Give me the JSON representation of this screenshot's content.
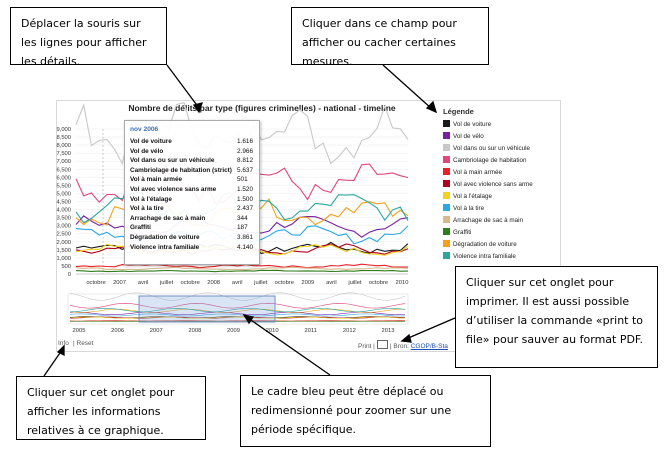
{
  "callouts": {
    "mouse": "Déplacer la souris sur les lignes pour afficher les détails.",
    "field": "Cliquer dans ce champ pour afficher ou cacher certaines mesures.",
    "print": "Cliquer sur cet onglet pour imprimer. Il est aussi possible d’utiliser la commande «print to file» pour sauver au format PDF.",
    "info": "Cliquer sur cet onglet pour afficher les informations relatives à ce graphique.",
    "frame": "Le cadre bleu peut être déplacé ou redimensionné pour zoomer sur une période spécifique."
  },
  "chart": {
    "title": "Nombre de délits par type (figures criminelles) - national - timeline",
    "legend_title": "Légende",
    "y_ticks": [
      "9,000",
      "8,500",
      "8,000",
      "7,500",
      "7,000",
      "6,500",
      "6,000",
      "5,500",
      "5,000",
      "4,500",
      "4,000",
      "3,500",
      "3,000",
      "2,500",
      "2,000",
      "1,500",
      "1,000",
      "500",
      "0"
    ],
    "x_ticks": [
      "octobre",
      "2007",
      "avril",
      "juillet",
      "octobre",
      "2008",
      "avril",
      "juillet",
      "octobre",
      "2009",
      "avril",
      "juillet",
      "octobre",
      "2010"
    ],
    "nav_years": [
      "2005",
      "2006",
      "2007",
      "2008",
      "2009",
      "2010",
      "2011",
      "2012",
      "2013"
    ]
  },
  "legend": [
    {
      "label": "Vol de voiture",
      "color": "#1a1a1a"
    },
    {
      "label": "Vol de vélo",
      "color": "#7a1fa2"
    },
    {
      "label": "Vol dans ou sur un véhicule",
      "color": "#c8c8c8"
    },
    {
      "label": "Cambriolage de habitation",
      "color": "#e0457b"
    },
    {
      "label": "Vol à main armée",
      "color": "#e8242a"
    },
    {
      "label": "Vol avec violence sans arme",
      "color": "#b0001e"
    },
    {
      "label": "Vol à l'étalage",
      "color": "#f2d21a"
    },
    {
      "label": "Vol à la tire",
      "color": "#2aa7e6"
    },
    {
      "label": "Arrachage de sac à main",
      "color": "#d9b98c"
    },
    {
      "label": "Graffiti",
      "color": "#2e7d1a"
    },
    {
      "label": "Dégradation de voiture",
      "color": "#f2a21a"
    },
    {
      "label": "Violence intra familiale",
      "color": "#2aa6a0"
    }
  ],
  "tooltip": {
    "month": "nov 2006",
    "rows": [
      {
        "label": "Vol de voiture",
        "value": "1.616"
      },
      {
        "label": "Vol de vélo",
        "value": "2.966"
      },
      {
        "label": "Vol dans ou sur un véhicule",
        "value": "8.812"
      },
      {
        "label": "Cambriolage de habitation (strict)",
        "value": "5.637"
      },
      {
        "label": "Vol à main armée",
        "value": "501"
      },
      {
        "label": "Vol avec violence sans arme",
        "value": "1.520"
      },
      {
        "label": "Vol à l'étalage",
        "value": "1.500"
      },
      {
        "label": "Vol à la tire",
        "value": "2.437"
      },
      {
        "label": "Arrachage de sac à main",
        "value": "344"
      },
      {
        "label": "Graffiti",
        "value": "187"
      },
      {
        "label": "Dégradation de voiture",
        "value": "3.861"
      },
      {
        "label": "Violence intra familiale",
        "value": "4.140"
      }
    ]
  },
  "footer": {
    "info": "Info",
    "reset": "Reset",
    "print": "Print |",
    "bron": "| Bron:",
    "bron_link": "CGOP/B-Sta"
  }
}
